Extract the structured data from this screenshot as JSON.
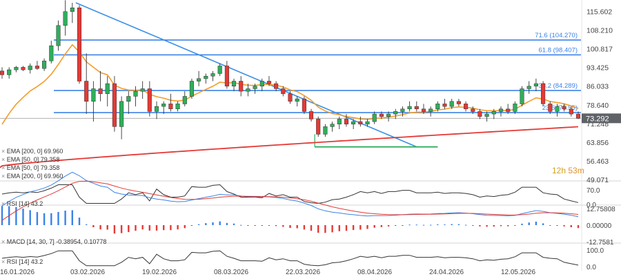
{
  "chart_data": {
    "type": "candlestick",
    "x_axis": {
      "labels": [
        "16.01.2026",
        "03.02.2026",
        "19.02.2026",
        "08.03.2026",
        "22.03.2026",
        "08.04.2026",
        "24.04.2026",
        "12.05.2026"
      ]
    },
    "main_panel": {
      "y_ticks": [
        "115.602",
        "108.210",
        "100.817",
        "93.425",
        "86.033",
        "78.640",
        "71.248",
        "63.856",
        "56.463",
        "49.071"
      ],
      "y_range": [
        49.071,
        119.0
      ],
      "last_price": "73.292",
      "countdown": {
        "h": "12h",
        "m": "53m"
      },
      "fib_levels": [
        {
          "label": "71.6 (104.270)",
          "value": 104.27
        },
        {
          "label": "61.8 (98.407)",
          "value": 98.407
        },
        {
          "label": "38.2 (84.289)",
          "value": 84.289
        },
        {
          "label": "23.6 (75.55)",
          "value": 75.55
        }
      ],
      "legend": [
        "EMA [200, 0] 69.960",
        "EMA [50, 0] 79.358",
        "EMA [50, 0] 79.358",
        "EMA [200, 0] 69.960"
      ],
      "ema50_color": "#f39c29",
      "ema200_color": "#e53935",
      "fib_color": "#3b82e6",
      "trendline_color": "#3b8fe6",
      "support_color": "#2fae5a",
      "up_color": "#2fae5a",
      "down_color": "#e53935",
      "candles": [
        [
          92,
          93.5,
          89,
          90.5
        ],
        [
          90.5,
          93.5,
          89,
          92.5
        ],
        [
          92.5,
          94,
          91.5,
          93.5
        ],
        [
          93.5,
          94,
          92,
          92.5
        ],
        [
          92.5,
          95,
          91,
          94
        ],
        [
          94,
          96,
          92.5,
          93
        ],
        [
          93,
          97,
          92,
          96
        ],
        [
          96,
          104,
          95,
          102
        ],
        [
          102,
          112,
          100,
          110
        ],
        [
          110,
          120,
          106,
          115.5
        ],
        [
          115.5,
          119,
          111,
          117
        ],
        [
          117,
          118,
          87,
          88
        ],
        [
          88,
          99,
          75,
          80
        ],
        [
          80,
          88,
          72,
          85
        ],
        [
          85,
          92,
          80,
          83
        ],
        [
          83,
          90,
          78,
          87
        ],
        [
          87,
          90,
          68,
          70
        ],
        [
          70,
          82,
          65,
          80
        ],
        [
          80,
          84,
          75,
          82
        ],
        [
          82,
          86,
          78,
          84
        ],
        [
          84,
          88,
          81,
          85
        ],
        [
          85,
          88,
          74,
          76
        ],
        [
          76,
          80,
          73,
          78
        ],
        [
          78,
          80,
          75,
          79
        ],
        [
          79,
          83,
          76,
          77
        ],
        [
          77,
          80,
          76,
          79
        ],
        [
          79,
          84,
          78,
          82
        ],
        [
          82,
          89,
          81,
          88
        ],
        [
          88,
          92,
          86,
          89
        ],
        [
          89,
          91,
          87,
          90
        ],
        [
          90,
          92,
          88,
          91
        ],
        [
          91,
          95,
          90,
          94
        ],
        [
          94,
          96,
          85,
          86
        ],
        [
          86,
          89,
          84,
          88
        ],
        [
          88,
          90,
          82,
          84
        ],
        [
          84,
          87,
          82,
          85
        ],
        [
          85,
          87,
          83,
          86
        ],
        [
          86,
          89,
          84,
          88
        ],
        [
          88,
          90,
          86,
          87
        ],
        [
          87,
          88,
          84,
          85
        ],
        [
          85,
          86,
          82,
          83
        ],
        [
          83,
          84,
          79,
          80
        ],
        [
          80,
          82,
          78,
          81
        ],
        [
          81,
          82,
          75,
          76
        ],
        [
          76,
          77,
          72,
          73
        ],
        [
          73,
          74,
          66,
          67
        ],
        [
          67,
          71,
          66,
          70
        ],
        [
          70,
          72,
          68,
          71
        ],
        [
          71,
          74,
          69,
          73
        ],
        [
          73,
          75,
          70,
          71
        ],
        [
          71,
          73,
          69,
          72
        ],
        [
          72,
          74,
          70,
          71
        ],
        [
          71,
          73,
          70,
          72
        ],
        [
          72,
          76,
          71,
          75
        ],
        [
          75,
          76,
          73,
          74
        ],
        [
          74,
          76,
          72,
          75
        ],
        [
          75,
          77,
          73,
          76
        ],
        [
          76,
          78,
          74,
          77
        ],
        [
          77,
          80,
          76,
          78
        ],
        [
          78,
          80,
          76,
          77
        ],
        [
          77,
          79,
          75,
          76
        ],
        [
          76,
          78,
          74,
          77
        ],
        [
          77,
          80,
          76,
          79
        ],
        [
          79,
          81,
          77,
          78
        ],
        [
          78,
          81,
          77,
          80
        ],
        [
          80,
          81,
          78,
          79
        ],
        [
          79,
          80,
          76,
          77
        ],
        [
          77,
          78,
          75,
          76
        ],
        [
          76,
          77,
          73,
          74
        ],
        [
          74,
          76,
          72,
          75
        ],
        [
          75,
          77,
          73,
          76
        ],
        [
          76,
          78,
          74,
          77
        ],
        [
          77,
          79,
          75,
          76
        ],
        [
          76,
          80,
          75,
          79
        ],
        [
          79,
          86,
          78,
          85
        ],
        [
          85,
          88,
          83,
          86
        ],
        [
          86,
          89,
          84,
          87
        ],
        [
          87,
          88,
          78,
          79
        ],
        [
          79,
          80,
          75,
          76
        ],
        [
          76,
          79,
          74,
          78
        ],
        [
          78,
          79,
          76,
          77
        ],
        [
          77,
          78,
          74,
          75
        ],
        [
          75,
          76,
          73,
          73.3
        ]
      ]
    },
    "rsi_panel_1": {
      "label": "RSI [14] 43.2",
      "ticks": [
        "70.0",
        "0.0"
      ],
      "range": [
        0,
        100
      ]
    },
    "macd_panel": {
      "label": "MACD [14, 30, 7] -0.38954, 0.10778",
      "ticks": [
        "12.75808",
        "0.00000",
        "-12.7581"
      ],
      "range": [
        -12.7581,
        12.75808
      ]
    },
    "rsi_panel_2": {
      "label": "RSI [14] 43.2",
      "ticks": [
        "100.0",
        "0.0"
      ],
      "range": [
        0,
        100
      ]
    }
  }
}
